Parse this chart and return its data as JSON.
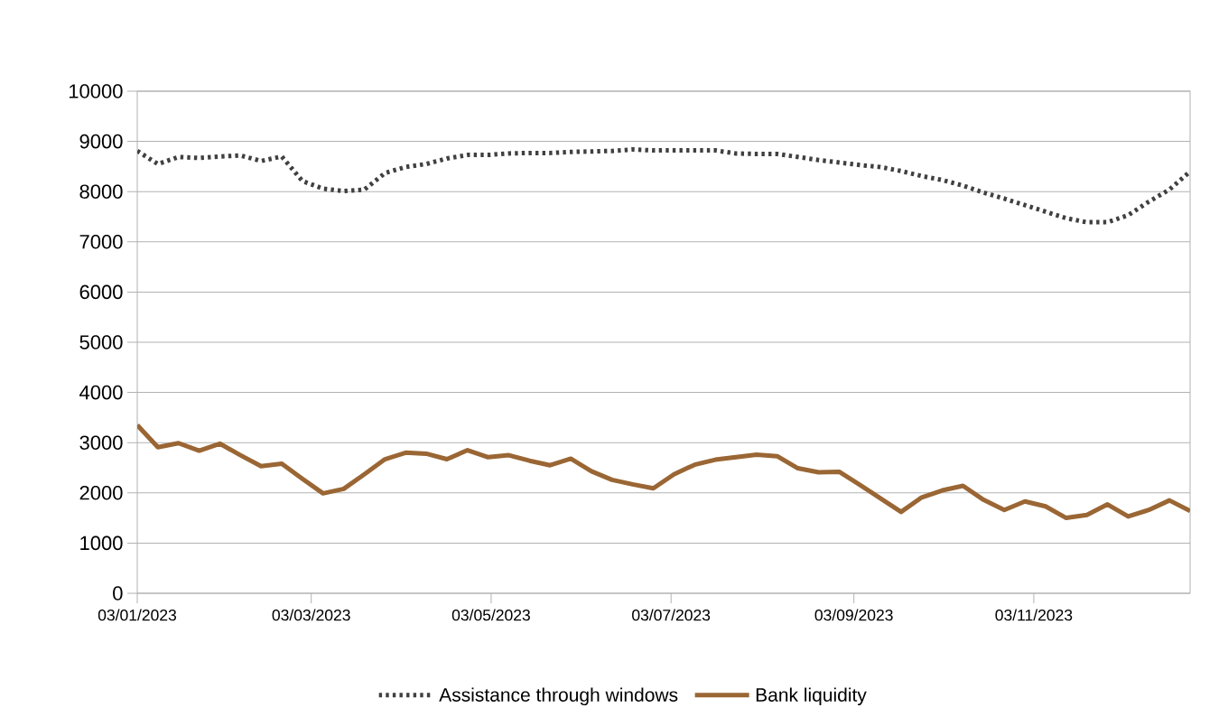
{
  "chart_data": {
    "type": "line",
    "x": [
      "2023-01-03",
      "2023-01-10",
      "2023-01-17",
      "2023-01-24",
      "2023-01-31",
      "2023-02-07",
      "2023-02-14",
      "2023-02-21",
      "2023-02-28",
      "2023-03-07",
      "2023-03-14",
      "2023-03-21",
      "2023-03-28",
      "2023-04-04",
      "2023-04-11",
      "2023-04-18",
      "2023-04-25",
      "2023-05-02",
      "2023-05-09",
      "2023-05-16",
      "2023-05-23",
      "2023-05-30",
      "2023-06-06",
      "2023-06-13",
      "2023-06-20",
      "2023-06-27",
      "2023-07-04",
      "2023-07-11",
      "2023-07-18",
      "2023-07-25",
      "2023-08-01",
      "2023-08-08",
      "2023-08-15",
      "2023-08-22",
      "2023-08-29",
      "2023-09-05",
      "2023-09-12",
      "2023-09-19",
      "2023-09-26",
      "2023-10-03",
      "2023-10-10",
      "2023-10-17",
      "2023-10-24",
      "2023-10-31",
      "2023-11-07",
      "2023-11-14",
      "2023-11-21",
      "2023-11-28",
      "2023-12-05",
      "2023-12-12",
      "2023-12-19",
      "2023-12-26"
    ],
    "xlim": [
      "2023-01-03",
      "2023-12-26"
    ],
    "xticks": [
      {
        "value": "2023-01-03",
        "label": "03/01/2023"
      },
      {
        "value": "2023-03-03",
        "label": "03/03/2023"
      },
      {
        "value": "2023-05-03",
        "label": "03/05/2023"
      },
      {
        "value": "2023-07-03",
        "label": "03/07/2023"
      },
      {
        "value": "2023-09-03",
        "label": "03/09/2023"
      },
      {
        "value": "2023-11-03",
        "label": "03/11/2023"
      }
    ],
    "ylim": [
      0,
      10000
    ],
    "yticks": [
      0,
      1000,
      2000,
      3000,
      4000,
      5000,
      6000,
      7000,
      8000,
      9000,
      10000
    ],
    "grid": "y",
    "legend": "bottom",
    "marker": "none",
    "series": [
      {
        "name": "Assistance through windows",
        "color": "#404040",
        "line_style": "dotted",
        "values": [
          8810,
          8550,
          8690,
          8670,
          8700,
          8720,
          8610,
          8700,
          8210,
          8060,
          8010,
          8040,
          8370,
          8490,
          8550,
          8660,
          8730,
          8730,
          8760,
          8770,
          8770,
          8790,
          8800,
          8810,
          8840,
          8820,
          8820,
          8820,
          8820,
          8760,
          8750,
          8750,
          8690,
          8630,
          8580,
          8530,
          8490,
          8410,
          8310,
          8230,
          8120,
          7980,
          7860,
          7730,
          7600,
          7470,
          7390,
          7390,
          7530,
          7800,
          8040,
          8400
        ]
      },
      {
        "name": "Bank liquidity",
        "color": "#9a6634",
        "line_style": "solid",
        "values": [
          3350,
          2910,
          2990,
          2840,
          2980,
          2750,
          2530,
          2580,
          2280,
          1990,
          2080,
          2370,
          2670,
          2800,
          2780,
          2670,
          2850,
          2710,
          2750,
          2640,
          2550,
          2680,
          2430,
          2260,
          2170,
          2090,
          2370,
          2560,
          2660,
          2710,
          2760,
          2730,
          2490,
          2410,
          2420,
          2160,
          1890,
          1620,
          1910,
          2050,
          2140,
          1860,
          1660,
          1830,
          1730,
          1500,
          1560,
          1770,
          1530,
          1660,
          1850,
          1640
        ]
      }
    ]
  }
}
